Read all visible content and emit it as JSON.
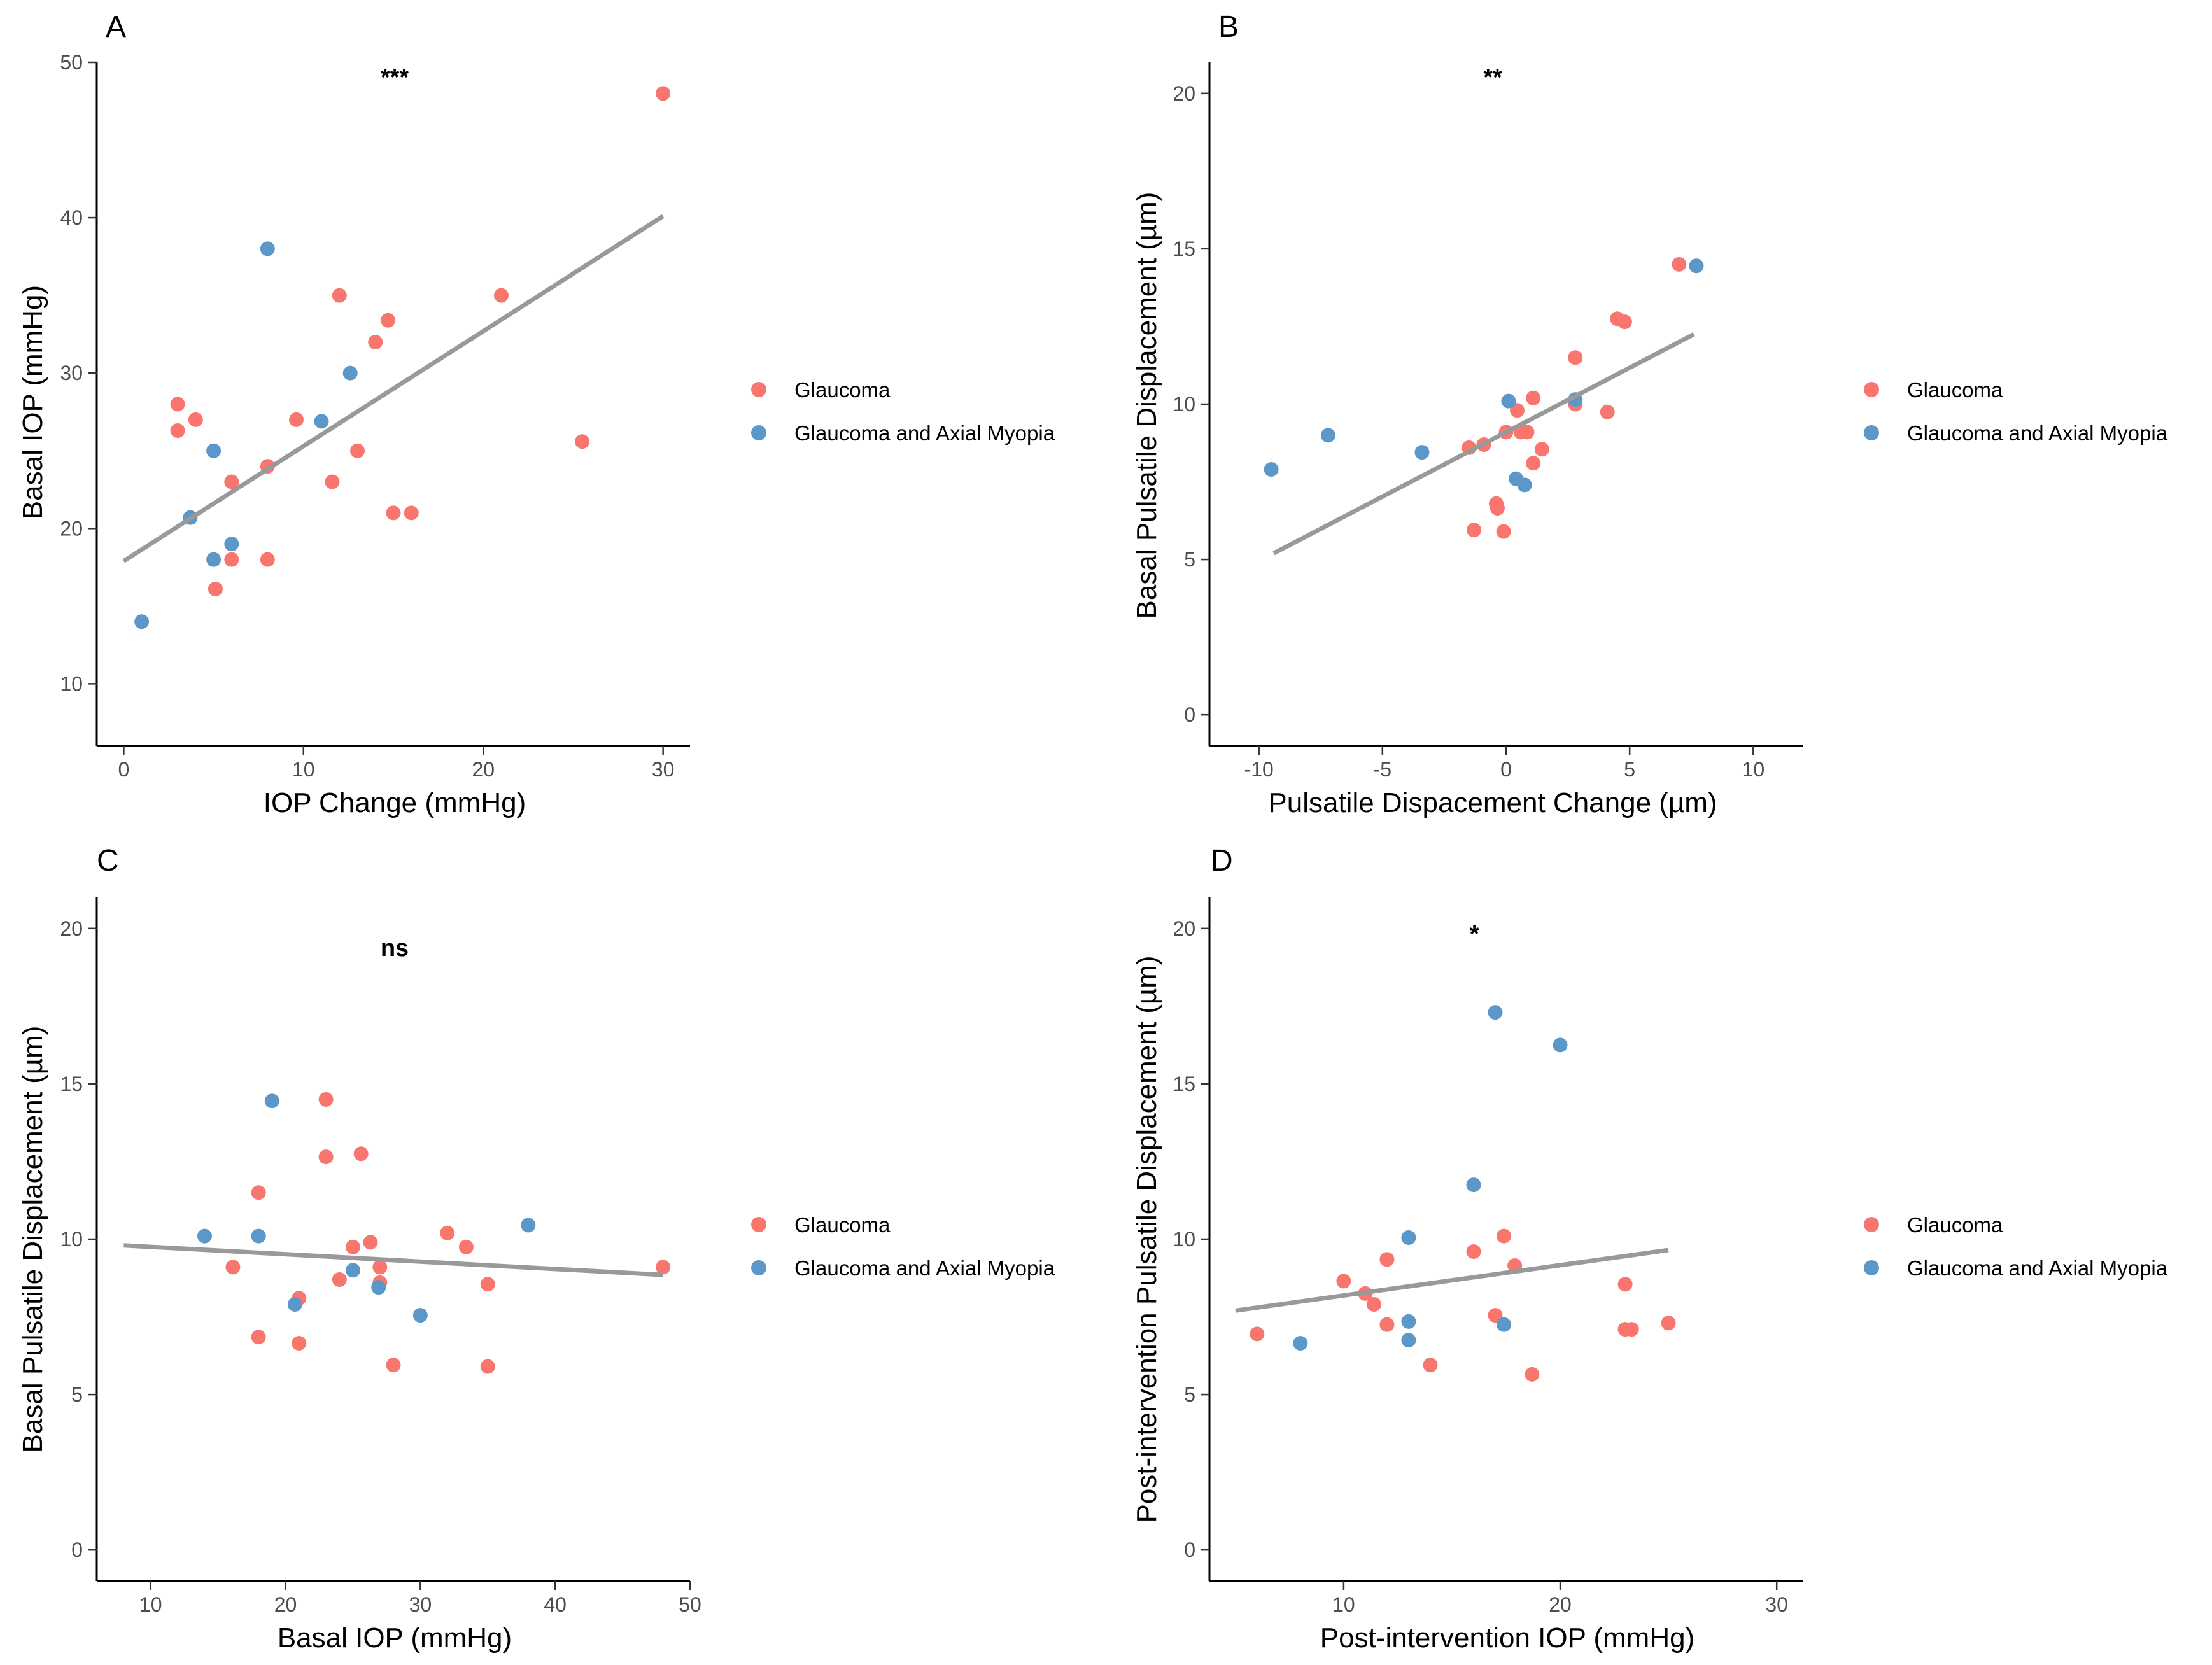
{
  "chart_data": [
    {
      "id": "A",
      "type": "scatter",
      "panel_label": "A",
      "significance": "***",
      "xlabel": "IOP Change (mmHg)",
      "ylabel": "Basal IOP (mmHg)",
      "xlim": [
        -1.5,
        31.5
      ],
      "ylim": [
        6,
        50
      ],
      "xticks": [
        0,
        10,
        20,
        30
      ],
      "yticks": [
        10,
        20,
        30,
        40,
        50
      ],
      "fit": {
        "x": [
          0,
          30
        ],
        "y": [
          17.9,
          40.1
        ]
      },
      "series": [
        {
          "name": "Glaucoma",
          "color": "#F8766D",
          "points": [
            [
              3,
              28
            ],
            [
              3,
              26.3
            ],
            [
              4,
              27
            ],
            [
              6,
              23
            ],
            [
              6,
              18
            ],
            [
              5.1,
              16.1
            ],
            [
              8,
              24
            ],
            [
              8,
              18
            ],
            [
              9.6,
              27
            ],
            [
              12,
              35
            ],
            [
              11.6,
              23
            ],
            [
              13,
              25
            ],
            [
              14.7,
              33.4
            ],
            [
              14,
              32
            ],
            [
              15,
              21
            ],
            [
              16,
              21
            ],
            [
              21,
              35
            ],
            [
              25.5,
              25.6
            ],
            [
              30,
              48
            ]
          ]
        },
        {
          "name": "Glaucoma and Axial Myopia",
          "color": "#5C97C9",
          "points": [
            [
              1,
              14
            ],
            [
              3.7,
              20.7
            ],
            [
              5,
              25
            ],
            [
              5,
              18
            ],
            [
              6,
              19
            ],
            [
              8,
              38
            ],
            [
              11,
              26.9
            ],
            [
              12.6,
              30
            ]
          ]
        }
      ],
      "legend": [
        "Glaucoma",
        "Glaucoma and Axial Myopia"
      ]
    },
    {
      "id": "B",
      "type": "scatter",
      "panel_label": "B",
      "significance": "**",
      "xlabel": "Pulsatile Dispacement Change (µm)",
      "ylabel": "Basal Pulsatile Displacement (µm)",
      "xlim": [
        -12,
        12
      ],
      "ylim": [
        -1,
        21
      ],
      "xticks": [
        -10,
        -5,
        0,
        5,
        10
      ],
      "yticks": [
        0,
        5,
        10,
        15,
        20
      ],
      "fit": {
        "x": [
          -9.4,
          7.6
        ],
        "y": [
          5.2,
          12.25
        ]
      },
      "series": [
        {
          "name": "Glaucoma",
          "color": "#F8766D",
          "points": [
            [
              -1.5,
              8.6
            ],
            [
              -0.9,
              8.7
            ],
            [
              -1.3,
              5.95
            ],
            [
              -0.4,
              6.8
            ],
            [
              -0.35,
              6.65
            ],
            [
              -0.1,
              5.9
            ],
            [
              0,
              9.1
            ],
            [
              0.45,
              9.8
            ],
            [
              0.6,
              9.1
            ],
            [
              0.85,
              9.1
            ],
            [
              1.1,
              10.2
            ],
            [
              1.1,
              8.1
            ],
            [
              1.45,
              8.55
            ],
            [
              2.8,
              11.5
            ],
            [
              2.8,
              10
            ],
            [
              4.1,
              9.75
            ],
            [
              4.5,
              12.75
            ],
            [
              4.8,
              12.65
            ],
            [
              7,
              14.5
            ]
          ]
        },
        {
          "name": "Glaucoma and Axial Myopia",
          "color": "#5C97C9",
          "points": [
            [
              -9.5,
              7.9
            ],
            [
              -7.2,
              9
            ],
            [
              -3.4,
              8.45
            ],
            [
              0.1,
              10.1
            ],
            [
              0.4,
              7.6
            ],
            [
              0.75,
              7.4
            ],
            [
              2.8,
              10.15
            ],
            [
              7.7,
              14.45
            ]
          ]
        }
      ],
      "legend": [
        "Glaucoma",
        "Glaucoma and Axial Myopia"
      ]
    },
    {
      "id": "C",
      "type": "scatter",
      "panel_label": "C",
      "significance": "ns",
      "xlabel": "Basal IOP (mmHg)",
      "ylabel": "Basal Pulsatile Displacement (µm)",
      "xlim": [
        6,
        50
      ],
      "ylim": [
        -1,
        21
      ],
      "xticks": [
        10,
        20,
        30,
        40,
        50
      ],
      "yticks": [
        0,
        5,
        10,
        15,
        20
      ],
      "fit": {
        "x": [
          8,
          48
        ],
        "y": [
          9.8,
          8.85
        ]
      },
      "series": [
        {
          "name": "Glaucoma",
          "color": "#F8766D",
          "points": [
            [
              16.1,
              9.1
            ],
            [
              18,
              11.5
            ],
            [
              18,
              6.85
            ],
            [
              21,
              8.1
            ],
            [
              21,
              6.65
            ],
            [
              23,
              12.65
            ],
            [
              23,
              14.5
            ],
            [
              24,
              8.7
            ],
            [
              25,
              9.75
            ],
            [
              25.6,
              12.75
            ],
            [
              26.3,
              9.9
            ],
            [
              27,
              9.1
            ],
            [
              27,
              8.6
            ],
            [
              28,
              5.95
            ],
            [
              32,
              10.2
            ],
            [
              33.4,
              9.75
            ],
            [
              35,
              8.55
            ],
            [
              35,
              5.9
            ],
            [
              48,
              9.1
            ]
          ]
        },
        {
          "name": "Glaucoma and Axial Myopia",
          "color": "#5C97C9",
          "points": [
            [
              14,
              10.1
            ],
            [
              18,
              10.1
            ],
            [
              19,
              14.45
            ],
            [
              20.7,
              7.9
            ],
            [
              25,
              9
            ],
            [
              26.9,
              8.45
            ],
            [
              30,
              7.55
            ],
            [
              38,
              10.45
            ]
          ]
        }
      ],
      "legend": [
        "Glaucoma",
        "Glaucoma and Axial Myopia"
      ]
    },
    {
      "id": "D",
      "type": "scatter",
      "panel_label": "D",
      "significance": "*",
      "xlabel": "Post-intervention IOP (mmHg)",
      "ylabel": "Post-intervention Pulsatile Displacement (µm)",
      "xlim": [
        3.8,
        31.2
      ],
      "ylim": [
        -1,
        21
      ],
      "xticks": [
        10,
        20,
        30
      ],
      "yticks": [
        0,
        5,
        10,
        15,
        20
      ],
      "fit": {
        "x": [
          5,
          25
        ],
        "y": [
          7.7,
          9.65
        ]
      },
      "series": [
        {
          "name": "Glaucoma",
          "color": "#F8766D",
          "points": [
            [
              6,
              6.95
            ],
            [
              10,
              8.65
            ],
            [
              11,
              8.25
            ],
            [
              11.4,
              7.9
            ],
            [
              12,
              9.35
            ],
            [
              12,
              7.25
            ],
            [
              14,
              5.95
            ],
            [
              16,
              9.6
            ],
            [
              17,
              7.55
            ],
            [
              17.4,
              10.1
            ],
            [
              17.9,
              9.15
            ],
            [
              18.7,
              5.65
            ],
            [
              23,
              8.55
            ],
            [
              23,
              7.1
            ],
            [
              23.3,
              7.1
            ],
            [
              25,
              7.3
            ]
          ]
        },
        {
          "name": "Glaucoma and Axial Myopia",
          "color": "#5C97C9",
          "points": [
            [
              8,
              6.65
            ],
            [
              13,
              10.05
            ],
            [
              13,
              7.35
            ],
            [
              13,
              6.75
            ],
            [
              16,
              11.75
            ],
            [
              17,
              17.3
            ],
            [
              17.4,
              7.25
            ],
            [
              20,
              16.25
            ]
          ]
        }
      ],
      "legend": [
        "Glaucoma",
        "Glaucoma and Axial Myopia"
      ]
    }
  ]
}
